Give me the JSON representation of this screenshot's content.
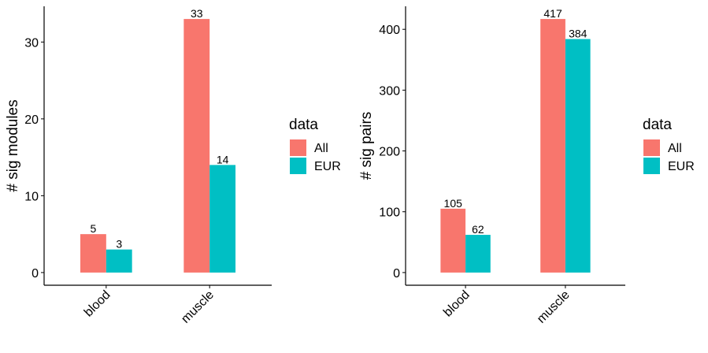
{
  "colors": {
    "All": "#F8766D",
    "EUR": "#00BFC4",
    "axis": "#000000"
  },
  "chart_data": [
    {
      "type": "bar",
      "categories": [
        "blood",
        "muscle"
      ],
      "series": [
        {
          "name": "All",
          "values": [
            5,
            33
          ]
        },
        {
          "name": "EUR",
          "values": [
            3,
            14
          ]
        }
      ],
      "ylabel": "# sig modules",
      "xlabel": "",
      "yticks": [
        0,
        10,
        20,
        30
      ],
      "ylim": [
        -1.65,
        34.65
      ],
      "legend": {
        "title": "data",
        "entries": [
          "All",
          "EUR"
        ],
        "placement": "right"
      },
      "grid": false
    },
    {
      "type": "bar",
      "categories": [
        "blood",
        "muscle"
      ],
      "series": [
        {
          "name": "All",
          "values": [
            105,
            417
          ]
        },
        {
          "name": "EUR",
          "values": [
            62,
            384
          ]
        }
      ],
      "ylabel": "# sig pairs",
      "xlabel": "",
      "yticks": [
        0,
        100,
        200,
        300,
        400
      ],
      "ylim": [
        -20.85,
        437.85
      ],
      "legend": {
        "title": "data",
        "entries": [
          "All",
          "EUR"
        ],
        "placement": "right"
      },
      "grid": false
    }
  ]
}
